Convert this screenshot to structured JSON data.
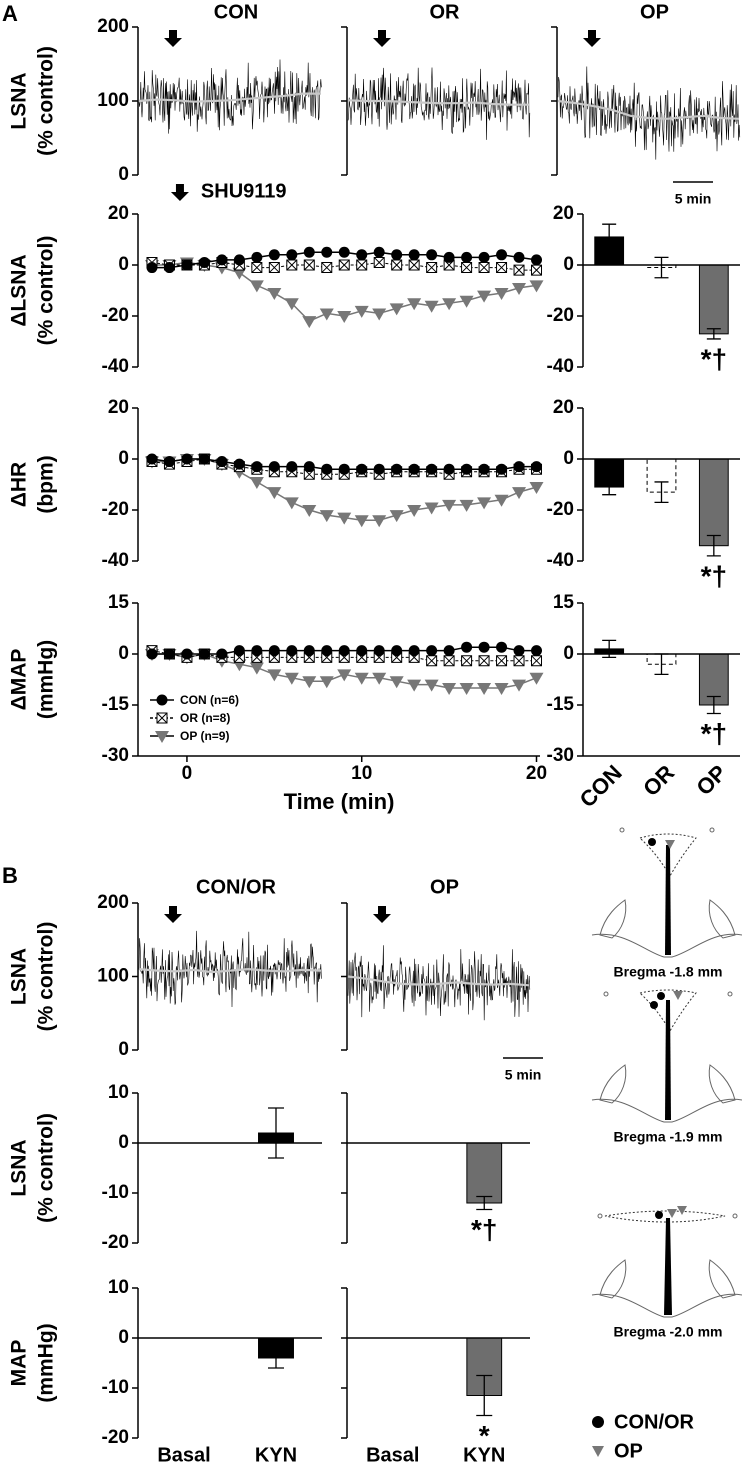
{
  "chart_data": [
    {
      "type": "trace",
      "panel_label": "A",
      "ylabel": [
        "LSNA",
        "(% control)"
      ],
      "ylim": [
        0,
        200
      ],
      "yticks": [
        0,
        100,
        200
      ],
      "scale_bar": "5 min",
      "trace_color": "#000000",
      "mean_color": "#c8c8c8",
      "panels": [
        {
          "title": "CON",
          "values": [
            100,
            102,
            101,
            99,
            100,
            101,
            103,
            105,
            107,
            110,
            110
          ]
        },
        {
          "title": "OR",
          "values": [
            101,
            100,
            100,
            99,
            98,
            97,
            97,
            98,
            96,
            95,
            95
          ]
        },
        {
          "title": "OP",
          "values": [
            100,
            97,
            93,
            88,
            80,
            77,
            76,
            78,
            80,
            77,
            76
          ]
        }
      ]
    },
    {
      "type": "line",
      "ylabel": [
        "ΔLSNA",
        "(% control)"
      ],
      "annotation": "SHU9119",
      "x": [
        -2,
        -1,
        0,
        1,
        2,
        3,
        4,
        5,
        6,
        7,
        8,
        9,
        10,
        11,
        12,
        13,
        14,
        15,
        16,
        17,
        18,
        19,
        20
      ],
      "xlim": [
        -2.8,
        20.2
      ],
      "ylim": [
        -40,
        20
      ],
      "yticks": [
        -40,
        -20,
        0,
        20
      ],
      "series": [
        {
          "color": "#000000",
          "marker": "circle",
          "values": [
            -1,
            -1,
            0,
            1,
            2,
            2,
            3,
            4,
            4,
            5,
            5,
            5,
            4,
            5,
            4,
            4,
            4,
            3,
            3,
            3,
            4,
            3,
            2
          ]
        },
        {
          "color": "#000000",
          "marker": "boxcross",
          "values": [
            1,
            0,
            0,
            0,
            1,
            0,
            -1,
            -1,
            0,
            0,
            -1,
            0,
            0,
            1,
            0,
            0,
            -1,
            0,
            -1,
            -1,
            -1,
            -2,
            -2
          ]
        },
        {
          "color": "#777777",
          "marker": "triangle",
          "values": [
            0,
            0,
            1,
            0,
            -1,
            -3,
            -8,
            -11,
            -15,
            -22,
            -19,
            -20,
            -18,
            -19,
            -17,
            -15,
            -16,
            -15,
            -14,
            -12,
            -11,
            -9,
            -8
          ]
        }
      ]
    },
    {
      "type": "bar",
      "ylim": [
        -40,
        20
      ],
      "yticks": [
        -40,
        -20,
        0,
        20
      ],
      "values": [
        11,
        -1,
        -27
      ],
      "errors": [
        5,
        4,
        2
      ],
      "colors": [
        "#000000",
        "#ffffff",
        "#6e6e6e"
      ],
      "dashed": [
        false,
        true,
        false
      ],
      "annotations": [
        null,
        null,
        "*†"
      ]
    },
    {
      "type": "line",
      "ylabel": [
        "ΔHR",
        "(bpm)"
      ],
      "x": [
        -2,
        -1,
        0,
        1,
        2,
        3,
        4,
        5,
        6,
        7,
        8,
        9,
        10,
        11,
        12,
        13,
        14,
        15,
        16,
        17,
        18,
        19,
        20
      ],
      "xlim": [
        -2.8,
        20.2
      ],
      "ylim": [
        -40,
        20
      ],
      "yticks": [
        -40,
        -20,
        0,
        20
      ],
      "series": [
        {
          "color": "#000000",
          "marker": "circle",
          "values": [
            0,
            -1,
            0,
            0,
            -1,
            -2,
            -3,
            -3,
            -3,
            -3,
            -4,
            -4,
            -4,
            -4,
            -4,
            -4,
            -4,
            -4,
            -4,
            -4,
            -4,
            -3,
            -3
          ]
        },
        {
          "color": "#000000",
          "marker": "boxcross",
          "values": [
            -1,
            -2,
            -1,
            0,
            -2,
            -3,
            -4,
            -5,
            -5,
            -6,
            -6,
            -6,
            -5,
            -6,
            -5,
            -5,
            -5,
            -6,
            -5,
            -5,
            -5,
            -4,
            -4
          ]
        },
        {
          "color": "#777777",
          "marker": "triangle",
          "values": [
            -1,
            -1,
            0,
            0,
            -2,
            -5,
            -9,
            -13,
            -17,
            -20,
            -22,
            -23,
            -24,
            -24,
            -22,
            -20,
            -19,
            -18,
            -18,
            -17,
            -16,
            -13,
            -11
          ]
        }
      ]
    },
    {
      "type": "bar",
      "ylim": [
        -40,
        20
      ],
      "yticks": [
        -40,
        -20,
        0,
        20
      ],
      "values": [
        -11,
        -13,
        -34
      ],
      "errors": [
        3,
        4,
        4
      ],
      "colors": [
        "#000000",
        "#ffffff",
        "#6e6e6e"
      ],
      "dashed": [
        false,
        true,
        false
      ],
      "annotations": [
        null,
        null,
        "*†"
      ]
    },
    {
      "type": "line",
      "ylabel": [
        "ΔMAP",
        "(mmHg)"
      ],
      "xlabel": "Time (min)",
      "legend": "lower left",
      "x": [
        -2,
        -1,
        0,
        1,
        2,
        3,
        4,
        5,
        6,
        7,
        8,
        9,
        10,
        11,
        12,
        13,
        14,
        15,
        16,
        17,
        18,
        19,
        20
      ],
      "xlim": [
        -2.8,
        20.2
      ],
      "xticks": [
        0,
        10,
        20
      ],
      "ylim": [
        -30,
        15
      ],
      "yticks": [
        -30,
        -15,
        0,
        15
      ],
      "series": [
        {
          "name": "CON (n=6)",
          "color": "#000000",
          "marker": "circle",
          "values": [
            0,
            0,
            0,
            0,
            0,
            1,
            1,
            1,
            1,
            1,
            1,
            1,
            1,
            1,
            1,
            1,
            1,
            1,
            2,
            2,
            2,
            1,
            1
          ]
        },
        {
          "name": "OR (n=8)",
          "color": "#000000",
          "marker": "boxcross",
          "values": [
            1,
            0,
            -1,
            0,
            -1,
            -1,
            -1,
            -1,
            -1,
            -1,
            -1,
            -1,
            -1,
            -1,
            -1,
            -1,
            -2,
            -2,
            -2,
            -2,
            -2,
            -2,
            -2
          ]
        },
        {
          "name": "OP (n=9)",
          "color": "#777777",
          "marker": "triangle",
          "values": [
            0,
            0,
            -1,
            0,
            -2,
            -3,
            -4,
            -6,
            -7,
            -8,
            -8,
            -6,
            -7,
            -7,
            -8,
            -9,
            -9,
            -10,
            -10,
            -10,
            -10,
            -9,
            -7
          ]
        }
      ]
    },
    {
      "type": "bar",
      "ylim": [
        -30,
        15
      ],
      "yticks": [
        -30,
        -15,
        0,
        15
      ],
      "categories": [
        "CON",
        "OR",
        "OP"
      ],
      "values": [
        1.5,
        -3,
        -15
      ],
      "errors": [
        2.5,
        3,
        2.5
      ],
      "colors": [
        "#000000",
        "#ffffff",
        "#6e6e6e"
      ],
      "dashed": [
        false,
        true,
        false
      ],
      "annotations": [
        null,
        null,
        "*†"
      ]
    },
    {
      "type": "trace",
      "panel_label": "B",
      "ylabel": [
        "LSNA",
        "(% control)"
      ],
      "ylim": [
        0,
        200
      ],
      "yticks": [
        0,
        100,
        200
      ],
      "scale_bar": "5 min",
      "trace_color": "#000000",
      "mean_color": "#c8c8c8",
      "panels": [
        {
          "title": "CON/OR",
          "values": [
            110,
            108,
            107,
            109,
            106,
            108,
            110,
            108,
            107,
            109,
            108
          ]
        },
        {
          "title": "OP",
          "values": [
            100,
            97,
            93,
            90,
            89,
            90,
            92,
            90,
            89,
            90,
            88
          ]
        }
      ]
    },
    {
      "type": "grouped_bar",
      "ylabel": [
        "LSNA",
        "(% control)"
      ],
      "ylim": [
        -20,
        10
      ],
      "yticks": [
        -20,
        -10,
        0,
        10
      ],
      "groups": [
        {
          "values": [
            0,
            2
          ],
          "errors": [
            null,
            5
          ],
          "color": "#000000"
        },
        {
          "values": [
            0,
            -12
          ],
          "errors": [
            null,
            1.3
          ],
          "color": "#6e6e6e",
          "annotations": [
            null,
            "*†"
          ]
        }
      ]
    },
    {
      "type": "grouped_bar",
      "ylabel": [
        "MAP",
        "(mmHg)"
      ],
      "ylim": [
        -20,
        10
      ],
      "yticks": [
        -20,
        -10,
        0,
        10
      ],
      "groups": [
        {
          "categories": [
            "Basal",
            "KYN"
          ],
          "values": [
            0,
            -4
          ],
          "errors": [
            null,
            2
          ],
          "color": "#000000"
        },
        {
          "categories": [
            "Basal",
            "KYN"
          ],
          "values": [
            0,
            -11.5
          ],
          "errors": [
            null,
            4
          ],
          "color": "#6e6e6e",
          "annotations": [
            null,
            "*"
          ]
        }
      ]
    }
  ],
  "atlas": {
    "sections": [
      "Bregma -1.8 mm",
      "Bregma -1.9 mm",
      "Bregma -2.0 mm"
    ],
    "legend": [
      "CON/OR",
      "OP"
    ]
  }
}
